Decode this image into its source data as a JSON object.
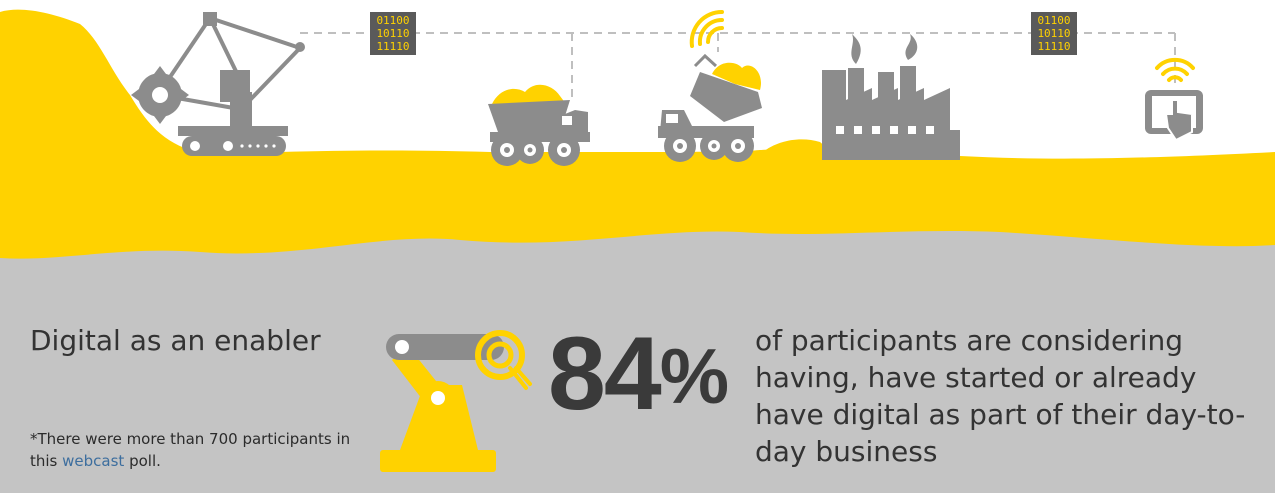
{
  "colors": {
    "yellow": "#ffd200",
    "gray_panel": "#c4c4c4",
    "icon_gray": "#8c8c8c",
    "text": "#333333",
    "link": "#3d6e9e"
  },
  "binary_blocks": [
    [
      "01100",
      "10110",
      "11110"
    ],
    [
      "01100",
      "10110",
      "11110"
    ]
  ],
  "icons": [
    "bucket-wheel-excavator-icon",
    "loaded-haul-truck-icon",
    "tipping-dump-truck-icon",
    "wifi-signal-icon",
    "factory-icon",
    "tablet-touch-icon",
    "robotic-arm-icon"
  ],
  "section": {
    "heading": "Digital as an enabler"
  },
  "stat": {
    "value": "84",
    "unit": "%",
    "description": "of participants are considering having, have started or already have digital as part of their day-to-day business"
  },
  "footnote": {
    "before": "*There were more than 700 participants in this",
    "link": "webcast",
    "after": "poll."
  }
}
